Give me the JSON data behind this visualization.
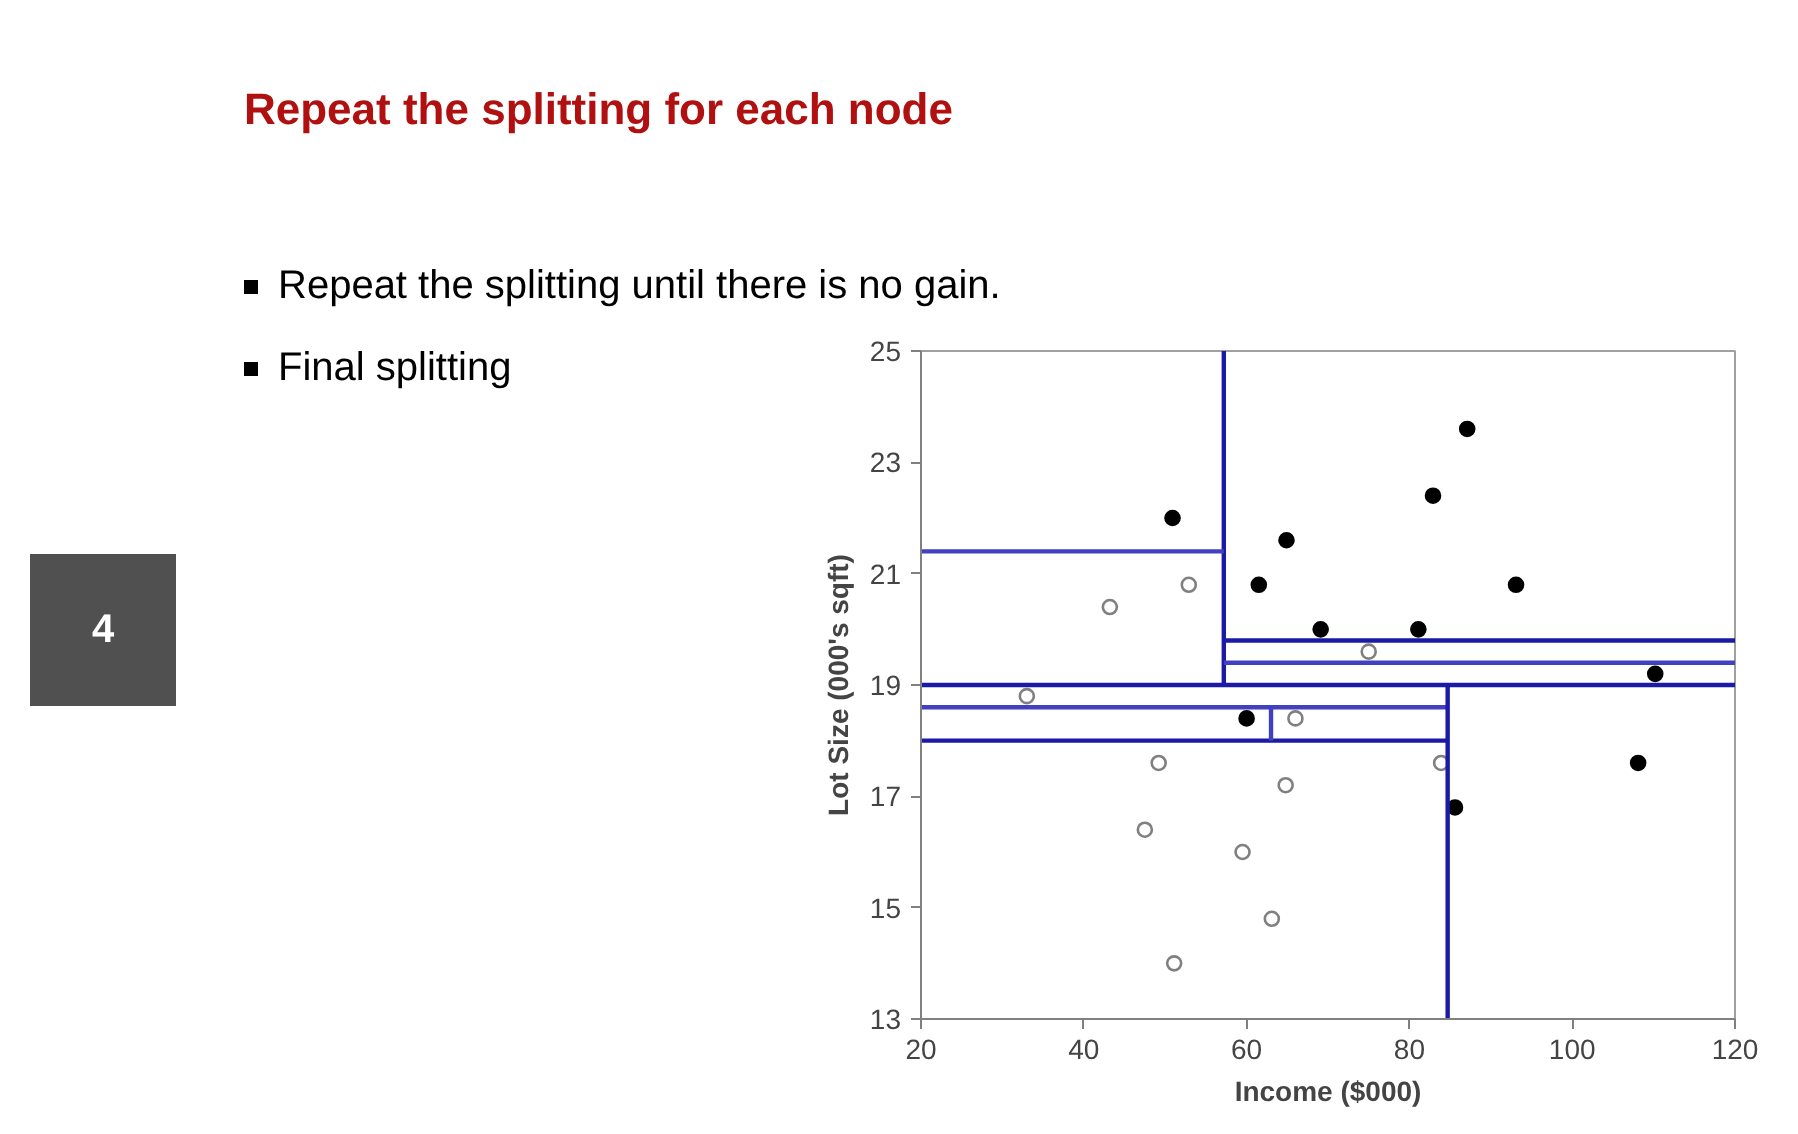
{
  "chart_data": {
    "type": "scatter",
    "title": "Repeat the splitting for each node",
    "annotations": [
      "Repeat the splitting until there is no gain.",
      "Final splitting",
      "4"
    ],
    "xlabel": "Income ($000)",
    "ylabel": "Lot Size (000's sqft)",
    "xlim": [
      20,
      120
    ],
    "xticks": [
      20,
      40,
      60,
      80,
      100,
      120
    ],
    "ylim": [
      13,
      25
    ],
    "yticks": [
      13,
      15,
      17,
      19,
      21,
      23,
      25
    ],
    "grid": false,
    "marker": "circle",
    "series": [
      {
        "color": "#000000",
        "x": [
          50.9,
          64.9,
          61.5,
          69.1,
          87.1,
          82.9,
          93.1,
          81.1,
          110.2,
          60.0,
          108.1,
          85.6
        ],
        "values": [
          22.0,
          21.6,
          20.8,
          20.0,
          23.6,
          22.4,
          20.8,
          20.0,
          19.2,
          18.4,
          17.6,
          16.8
        ]
      },
      {
        "color": "#808080",
        "marker": "circle_open",
        "x": [
          43.2,
          52.9,
          75.0,
          33.0,
          66.0,
          49.2,
          64.8,
          47.5,
          59.5,
          63.1,
          51.1,
          83.9
        ],
        "values": [
          20.4,
          20.8,
          19.6,
          18.8,
          18.4,
          17.6,
          17.2,
          16.4,
          16.0,
          14.8,
          14.0,
          17.6
        ]
      },
      {
        "type": "line",
        "marker": "none",
        "color": "#1a1aa6",
        "x": [
          57.2,
          57.2
        ],
        "values": [
          19,
          25
        ]
      },
      {
        "type": "line",
        "marker": "none",
        "color": "#4040c0",
        "x": [
          20,
          57.2
        ],
        "values": [
          21.4,
          21.4
        ]
      },
      {
        "type": "line",
        "marker": "none",
        "color": "#1a1aa6",
        "x": [
          57.2,
          120
        ],
        "values": [
          19.8,
          19.8
        ]
      },
      {
        "type": "line",
        "marker": "none",
        "color": "#4040c0",
        "x": [
          57.2,
          120
        ],
        "values": [
          19.4,
          19.4
        ]
      },
      {
        "type": "line",
        "marker": "none",
        "color": "#1a1aa6",
        "x": [
          20,
          120
        ],
        "values": [
          19,
          19
        ]
      },
      {
        "type": "line",
        "marker": "none",
        "color": "#4040c0",
        "x": [
          20,
          84.7
        ],
        "values": [
          18.6,
          18.6
        ]
      },
      {
        "type": "line",
        "marker": "none",
        "color": "#1a1aa6",
        "x": [
          20,
          84.7
        ],
        "values": [
          18,
          18
        ]
      },
      {
        "type": "line",
        "marker": "none",
        "color": "#1a1aa6",
        "x": [
          84.7,
          84.7
        ],
        "values": [
          13,
          19
        ]
      },
      {
        "type": "line",
        "marker": "none",
        "color": "#4040c0",
        "x": [
          63.0,
          63.0
        ],
        "values": [
          18,
          18.6
        ]
      }
    ]
  }
}
